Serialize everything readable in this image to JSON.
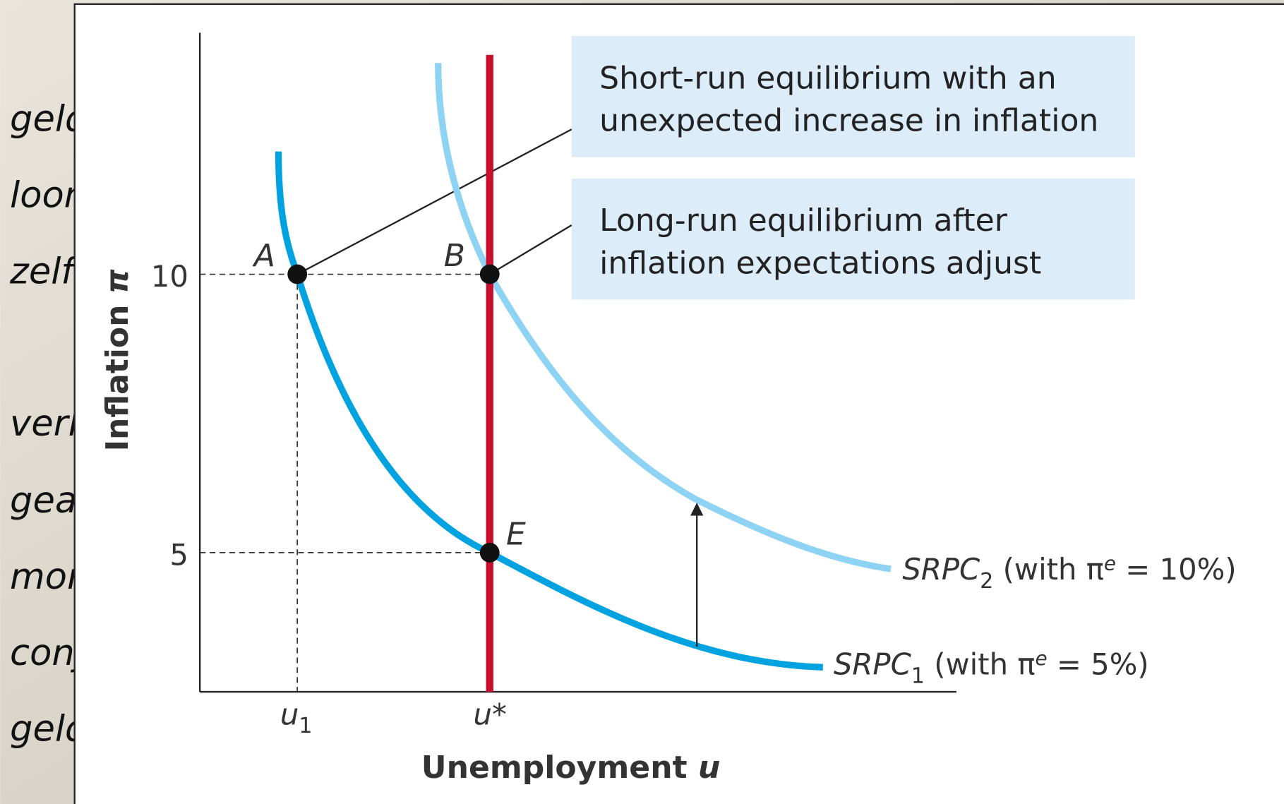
{
  "slide_text": [
    "geld",
    "loon",
    "zelf",
    "verk",
    "gea",
    "mon",
    "conj",
    "geld"
  ],
  "axes": {
    "y_title": "Inflation ",
    "y_symbol": "π",
    "x_title": "Unemployment ",
    "x_symbol": "u",
    "y_ticks": [
      "10",
      "5"
    ],
    "x_ticks": [
      {
        "main": "u",
        "sub": "1"
      },
      {
        "main": "u*"
      }
    ]
  },
  "points": [
    "A",
    "B",
    "E"
  ],
  "annotations": [
    {
      "line1": "Short-run equilibrium with an",
      "line2": "unexpected increase in inflation"
    },
    {
      "line1": "Long-run equilibrium after",
      "line2": "inflation expectations adjust"
    }
  ],
  "curves": [
    {
      "main": "SRPC",
      "sub": "2",
      "rest": " (with π",
      "sup": "e",
      "end": " = 10%)"
    },
    {
      "main": "SRPC",
      "sub": "1",
      "rest": " (with π",
      "sup": "e",
      "end": " = 5%)"
    }
  ]
}
